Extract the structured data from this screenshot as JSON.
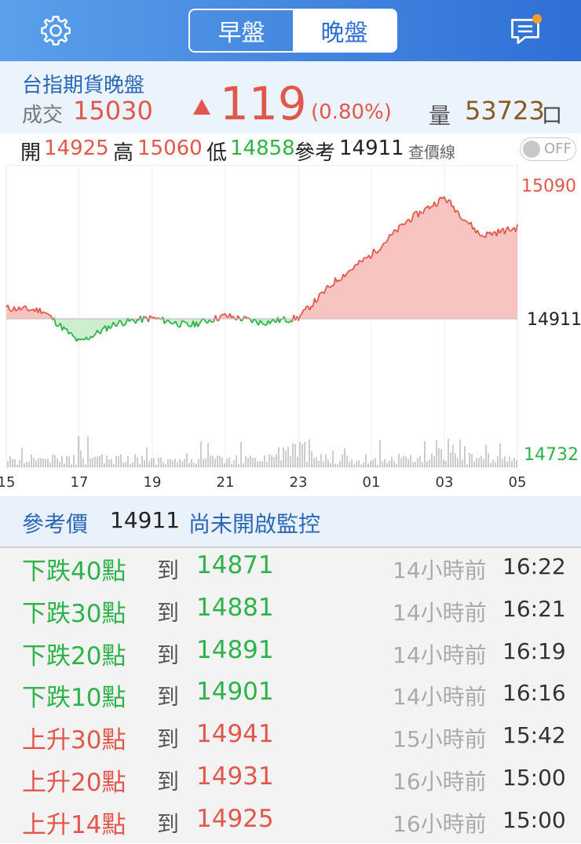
{
  "header": {
    "tabs": [
      {
        "label": "早盤",
        "active": false
      },
      {
        "label": "晚盤",
        "active": true
      }
    ],
    "icons": {
      "left": "gear-icon",
      "right": "chat-icon"
    },
    "badge_color": "#f39c2a"
  },
  "quote": {
    "title": "台指期貨晚盤",
    "last_label": "成交",
    "last": "15030",
    "change_arrow": "up-triangle",
    "change": "119",
    "change_pct": "(0.80%)",
    "volume_label": "量",
    "volume": "53723",
    "volume_unit": "口"
  },
  "ohlc": {
    "open_label": "開",
    "open": "14925",
    "high_label": "高",
    "high": "15060",
    "low_label": "低",
    "low": "14858",
    "ref_label": "參考",
    "ref": "14911",
    "price_line_label": "查價線",
    "price_line_toggle": "OFF"
  },
  "chart": {
    "ylabels": {
      "top": "15090",
      "ref": "14911",
      "bottom": "14732"
    },
    "xlabels": [
      "15",
      "17",
      "19",
      "21",
      "23",
      "01",
      "03",
      "05"
    ],
    "colors": {
      "up": "#e2574c",
      "up_fill": "#f7c4c1",
      "down": "#2db34a",
      "down_fill": "#cdeecf",
      "volume": "#9a9a9a"
    }
  },
  "chart_data": {
    "type": "area",
    "reference": 14911,
    "ylim": [
      14732,
      15090
    ],
    "x": [
      "15",
      "16",
      "17",
      "18",
      "19",
      "20",
      "21",
      "22",
      "23",
      "00",
      "01",
      "02",
      "03",
      "04",
      "05"
    ],
    "series": [
      {
        "values": [
          14925,
          14922,
          14880,
          14905,
          14912,
          14902,
          14915,
          14906,
          14912,
          14960,
          14995,
          15040,
          15070,
          15020,
          15030
        ]
      }
    ]
  },
  "monitor": {
    "ref_label": "參考價",
    "ref_value": "14911",
    "status": "尚未開啟監控"
  },
  "alerts": [
    {
      "label": "下跌40點",
      "to": "到",
      "price": "14871",
      "ago": "14小時前",
      "time": "16:22",
      "dir": "down"
    },
    {
      "label": "下跌30點",
      "to": "到",
      "price": "14881",
      "ago": "14小時前",
      "time": "16:21",
      "dir": "down"
    },
    {
      "label": "下跌20點",
      "to": "到",
      "price": "14891",
      "ago": "14小時前",
      "time": "16:19",
      "dir": "down"
    },
    {
      "label": "下跌10點",
      "to": "到",
      "price": "14901",
      "ago": "14小時前",
      "time": "16:16",
      "dir": "down"
    },
    {
      "label": "上升30點",
      "to": "到",
      "price": "14941",
      "ago": "15小時前",
      "time": "15:42",
      "dir": "up"
    },
    {
      "label": "上升20點",
      "to": "到",
      "price": "14931",
      "ago": "16小時前",
      "time": "15:00",
      "dir": "up"
    },
    {
      "label": "上升14點",
      "to": "到",
      "price": "14925",
      "ago": "16小時前",
      "time": "15:00",
      "dir": "up"
    }
  ]
}
